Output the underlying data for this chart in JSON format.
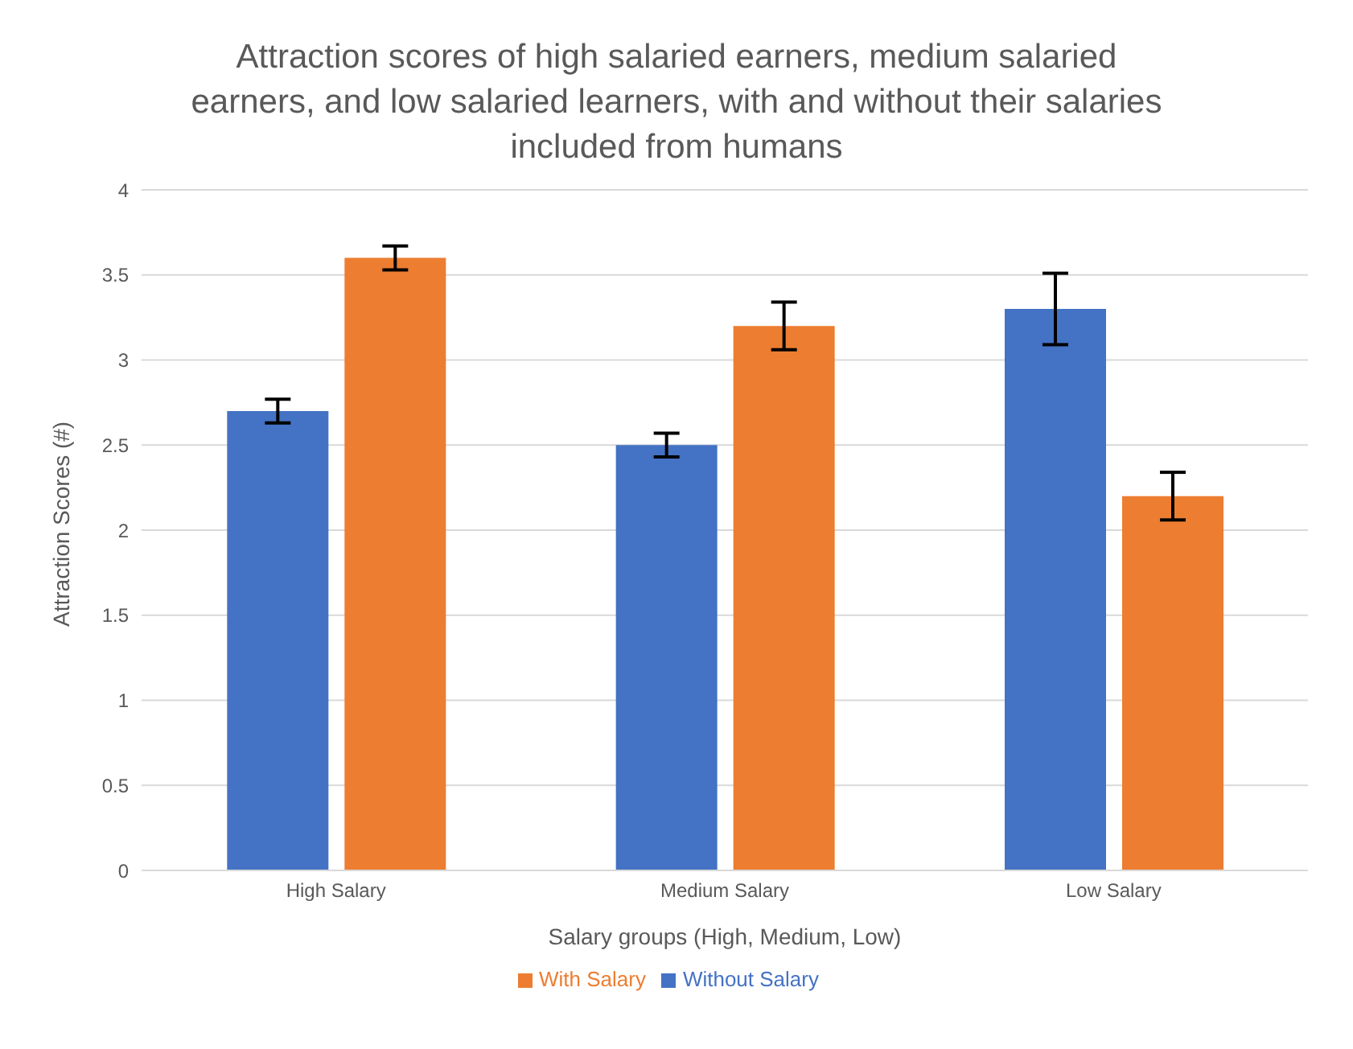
{
  "chart_data": {
    "type": "bar",
    "title": "Attraction scores of high salaried earners, medium salaried earners, and low salaried learners, with and without their salaries included from humans",
    "xlabel": "Salary groups (High, Medium, Low)",
    "ylabel": "Attraction Scores (#)",
    "categories": [
      "High Salary",
      "Medium Salary",
      "Low Salary"
    ],
    "series": [
      {
        "name": "Without Salary",
        "color": "#4472c4",
        "values": [
          2.7,
          2.5,
          3.3
        ],
        "errors": [
          0.07,
          0.07,
          0.21
        ]
      },
      {
        "name": "With Salary",
        "color": "#ed7d31",
        "values": [
          3.6,
          3.2,
          2.2
        ],
        "errors": [
          0.07,
          0.14,
          0.14
        ]
      }
    ],
    "ylim": [
      0,
      4
    ],
    "yticks": [
      0,
      0.5,
      1,
      1.5,
      2,
      2.5,
      3,
      3.5,
      4
    ],
    "grid": "y",
    "legend": "bottom"
  }
}
